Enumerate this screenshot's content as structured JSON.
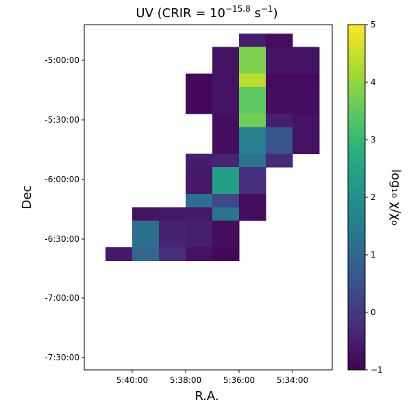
{
  "chart_data": {
    "type": "heatmap",
    "title": "UV (CRIR = 10",
    "title_exponent": "−15.8",
    "title_unit_base": "s",
    "title_unit_exponent": "−1",
    "title_close": ")",
    "xlabel": "R.A.",
    "ylabel": "Dec",
    "colorbar_label": "log₁₀ χ/χ₀",
    "colormap": "viridis",
    "color_range": [
      -1,
      5
    ],
    "grid": false,
    "colorbar_position": "right",
    "x_ticks": [
      "5:40:00",
      "5:38:00",
      "5:36:00",
      "5:34:00"
    ],
    "y_ticks": [
      "-5:00:00",
      "-5:30:00",
      "-6:00:00",
      "-6:30:00",
      "-7:00:00",
      "-7:30:00"
    ],
    "colorbar_ticks": [
      "5",
      "4",
      "3",
      "2",
      "1",
      "0",
      "−1"
    ],
    "colorbar_tick_values": [
      5,
      4,
      3,
      2,
      1,
      0,
      -1
    ],
    "columns_ra": [
      "5:41:00",
      "5:40:00",
      "5:39:00",
      "5:38:00",
      "5:37:00",
      "5:36:00",
      "5:35:00",
      "5:34:00"
    ],
    "rows_dec": [
      "-4:50:00",
      "-5:00:00",
      "-5:10:00",
      "-5:20:00",
      "-5:30:00",
      "-5:40:00",
      "-5:50:00",
      "-6:00:00",
      "-6:10:00",
      "-6:20:00",
      "-6:30:00",
      "-6:40:00",
      "-6:50:00",
      "-7:00:00",
      "-7:10:00",
      "-7:20:00",
      "-7:30:00"
    ],
    "values": [
      [
        null,
        null,
        null,
        null,
        null,
        -0.5,
        -0.8,
        null
      ],
      [
        null,
        null,
        null,
        null,
        -0.7,
        3.8,
        -0.7,
        -0.7
      ],
      [
        null,
        null,
        null,
        null,
        -0.7,
        3.8,
        -0.7,
        -0.7
      ],
      [
        null,
        null,
        null,
        -0.9,
        -0.7,
        4.4,
        -0.85,
        -0.85
      ],
      [
        null,
        null,
        null,
        -0.9,
        -0.7,
        3.5,
        -0.8,
        -0.8
      ],
      [
        null,
        null,
        null,
        -0.9,
        -0.7,
        3.5,
        -0.8,
        -0.8
      ],
      [
        null,
        null,
        null,
        null,
        -0.8,
        3.7,
        -0.5,
        -0.7
      ],
      [
        null,
        null,
        null,
        null,
        -0.8,
        1.6,
        0.6,
        -0.7
      ],
      [
        null,
        null,
        null,
        null,
        -0.8,
        1.6,
        0.6,
        -0.7
      ],
      [
        null,
        null,
        null,
        -0.5,
        -0.4,
        1.3,
        -0.3,
        null
      ],
      [
        null,
        null,
        null,
        -0.6,
        2.4,
        -0.2,
        null,
        null
      ],
      [
        null,
        null,
        null,
        -0.6,
        2.4,
        -0.2,
        null,
        null
      ],
      [
        null,
        null,
        null,
        1.2,
        0.3,
        -0.8,
        null,
        null
      ],
      [
        null,
        -0.7,
        -0.6,
        -0.6,
        1.3,
        -0.8,
        null,
        null
      ],
      [
        null,
        1.2,
        -0.4,
        -0.5,
        -0.8,
        null,
        null,
        null
      ],
      [
        null,
        1.2,
        -0.4,
        -0.5,
        -0.8,
        null,
        null,
        null
      ],
      [
        -0.6,
        1.0,
        -0.2,
        -0.7,
        -0.9,
        null,
        null,
        null
      ]
    ]
  }
}
